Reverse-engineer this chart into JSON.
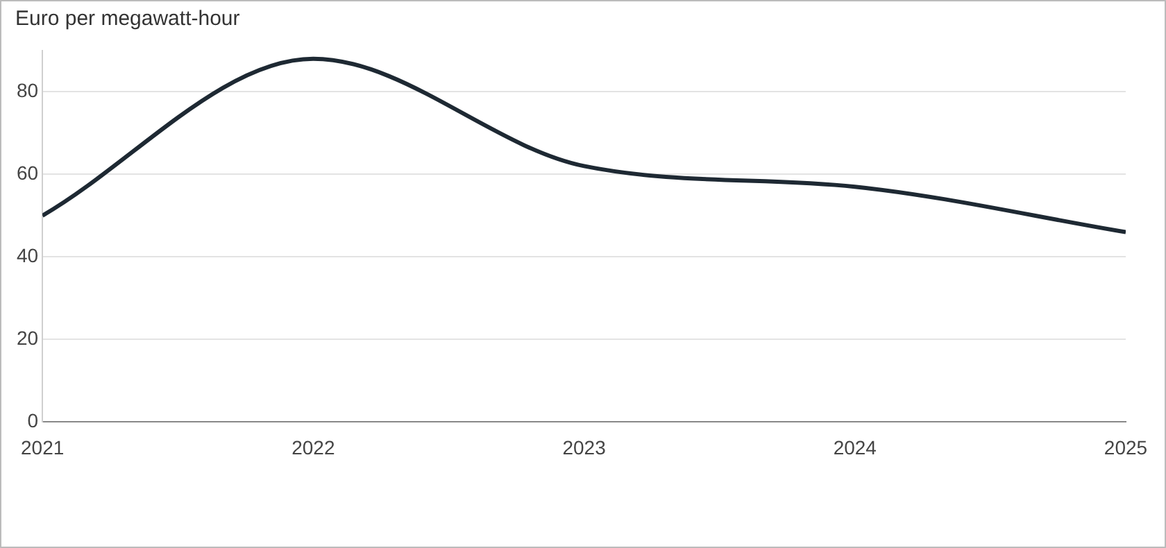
{
  "chart_data": {
    "type": "line",
    "ylabel": "Euro per megawatt-hour",
    "x": [
      2021,
      2022,
      2023,
      2024,
      2025
    ],
    "series": [
      {
        "color": "#1e2933",
        "values": [
          50,
          88,
          62,
          57,
          46
        ]
      }
    ],
    "xlim": [
      2021,
      2025
    ],
    "xticks": [
      2021,
      2022,
      2023,
      2024,
      2025
    ],
    "ylim": [
      0,
      90
    ],
    "yticks": [
      0,
      20,
      40,
      60,
      80
    ],
    "grid": "y",
    "legend": false,
    "marker": "none",
    "line_style": "solid"
  }
}
